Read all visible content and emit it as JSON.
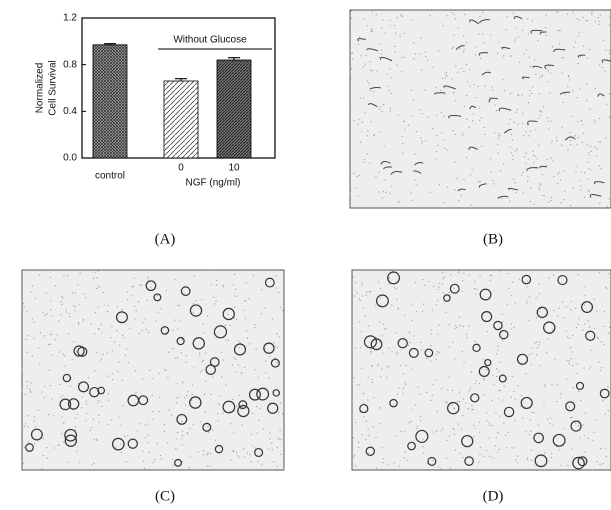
{
  "chart_data": {
    "type": "bar",
    "ylabel": [
      "Normalized",
      "Cell Survival"
    ],
    "xlabel": "NGF (ng/ml)",
    "annotation": "Without Glucose",
    "categories": [
      "control",
      "0",
      "10"
    ],
    "values": [
      0.97,
      0.66,
      0.84
    ],
    "errors": [
      0.01,
      0.02,
      0.02
    ],
    "ylim": [
      0,
      1.2
    ],
    "yticks": [
      {
        "value": 0,
        "label": "0.0"
      },
      0.4,
      0.8,
      1.2
    ]
  },
  "panel_labels": [
    "(A)",
    "(B)",
    "(C)",
    "(D)"
  ]
}
